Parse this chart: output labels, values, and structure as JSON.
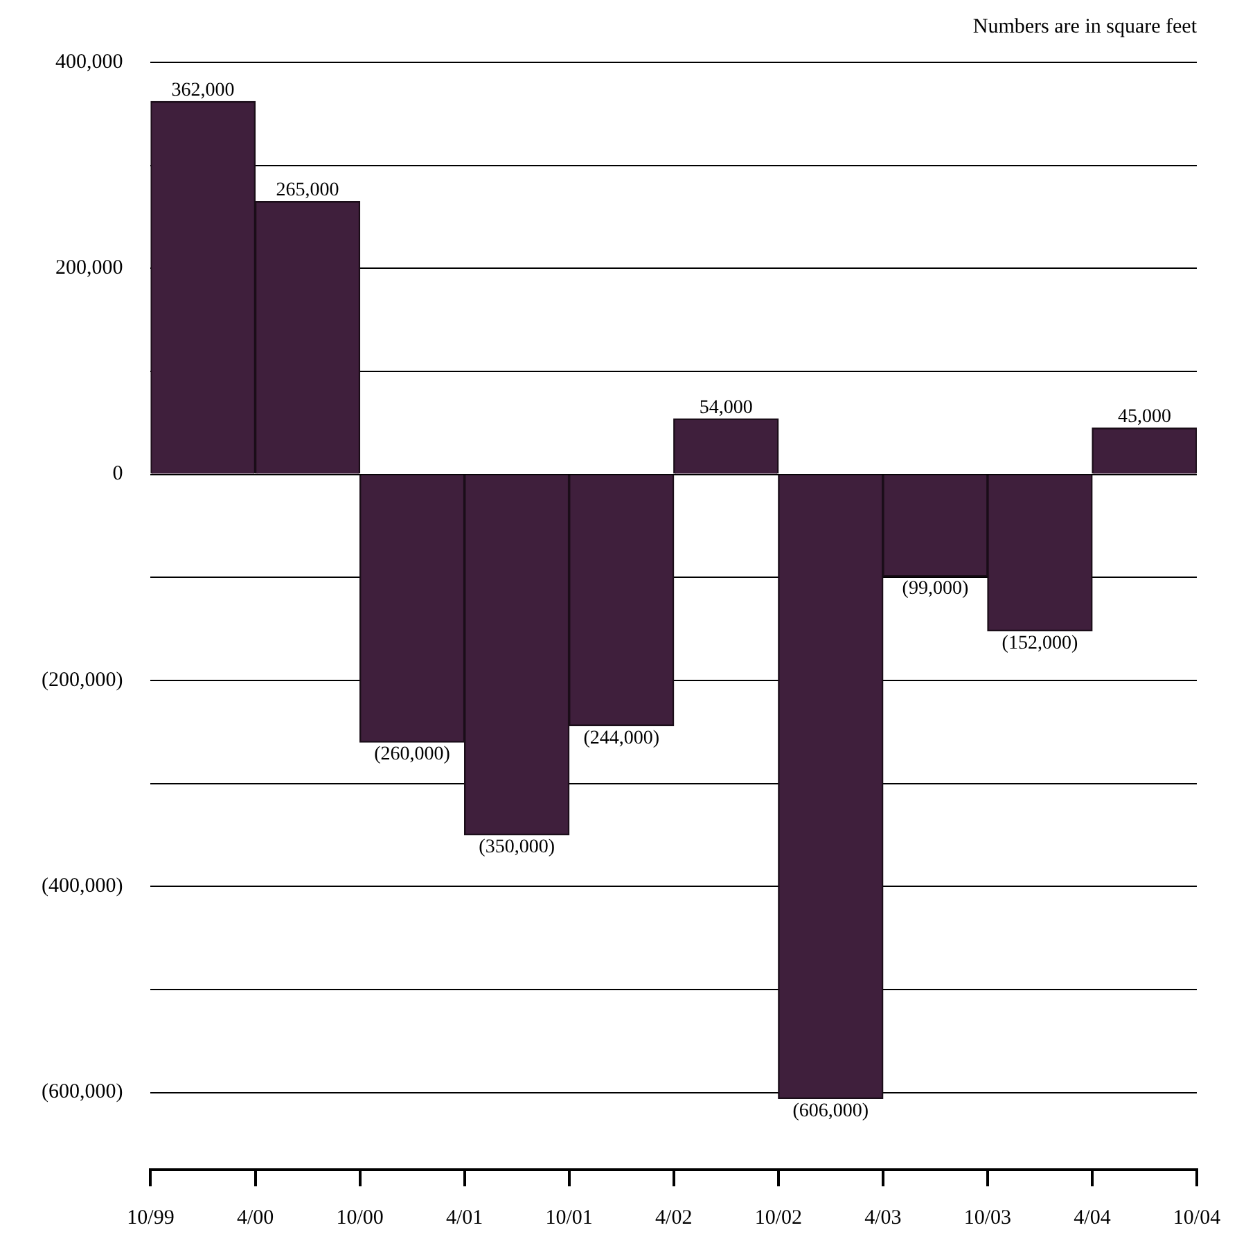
{
  "chart_data": {
    "type": "bar",
    "x": [
      "2000-01",
      "2000-07",
      "2001-01",
      "2001-07",
      "2002-01",
      "2002-07",
      "2003-01",
      "2003-07",
      "2004-01",
      "2004-07"
    ],
    "values": [
      362000,
      265000,
      -260000,
      -350000,
      -244000,
      54000,
      -606000,
      -99000,
      -152000,
      45000
    ],
    "value_labels": [
      "362,000",
      "265,000",
      "(260,000)",
      "(350,000)",
      "(244,000)",
      "54,000",
      "(606,000)",
      "(99,000)",
      "(152,000)",
      "45,000"
    ],
    "color": "#3f1f3c",
    "xlim": [
      "1999-10",
      "2004-10"
    ],
    "xticks": [
      {
        "value": "1999-10",
        "label": "10/99"
      },
      {
        "value": "2000-04",
        "label": "4/00"
      },
      {
        "value": "2000-10",
        "label": "10/00"
      },
      {
        "value": "2001-04",
        "label": "4/01"
      },
      {
        "value": "2001-10",
        "label": "10/01"
      },
      {
        "value": "2002-04",
        "label": "4/02"
      },
      {
        "value": "2002-10",
        "label": "10/02"
      },
      {
        "value": "2003-04",
        "label": "4/03"
      },
      {
        "value": "2003-10",
        "label": "10/03"
      },
      {
        "value": "2004-04",
        "label": "4/04"
      },
      {
        "value": "2004-10",
        "label": "10/04"
      }
    ],
    "ylim": [
      -675000,
      400000
    ],
    "yticks": [
      {
        "value": -600000,
        "label": "(600,000)"
      },
      {
        "value": -500000,
        "label": null
      },
      {
        "value": -400000,
        "label": "(400,000)"
      },
      {
        "value": -300000,
        "label": null
      },
      {
        "value": -200000,
        "label": "(200,000)"
      },
      {
        "value": -100000,
        "label": null
      },
      {
        "value": 0,
        "label": "0"
      },
      {
        "value": 100000,
        "label": null
      },
      {
        "value": 200000,
        "label": "200,000"
      },
      {
        "value": 300000,
        "label": null
      },
      {
        "value": 400000,
        "label": "400,000"
      }
    ],
    "grid": "y",
    "legend": false,
    "annotations": [
      "Numbers are in square feet"
    ]
  }
}
